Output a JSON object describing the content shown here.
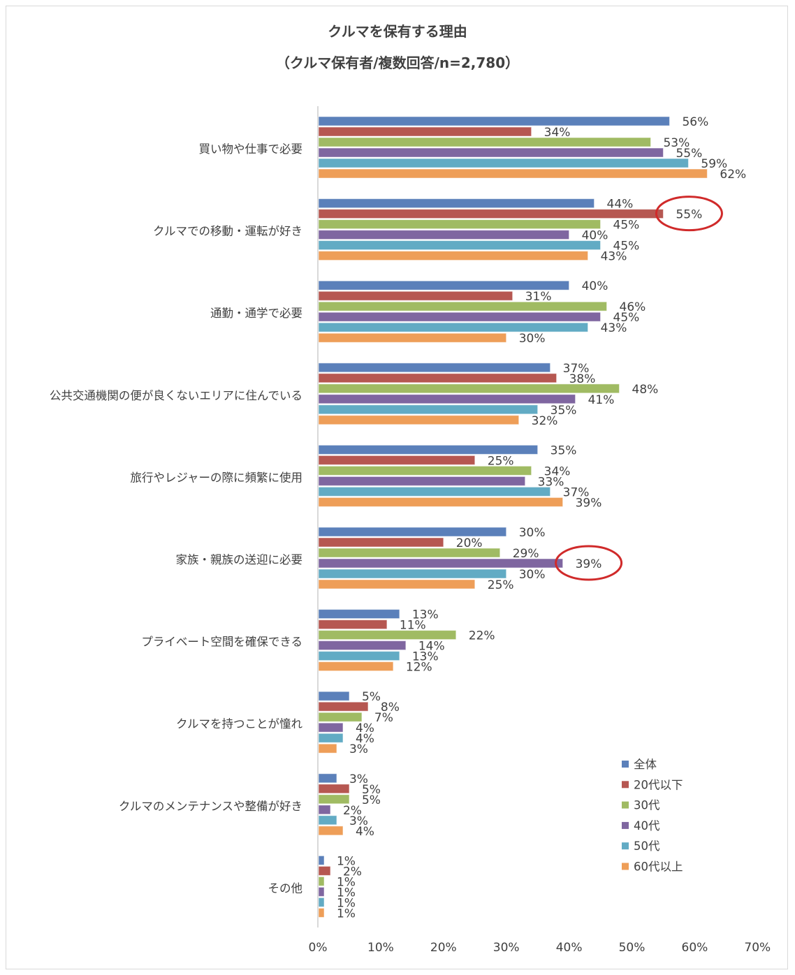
{
  "chart_data": {
    "type": "bar",
    "orientation": "horizontal",
    "title": "クルマを保有する理由",
    "subtitle": "（クルマ保有者/複数回答/n=2,780）",
    "xlabel": "",
    "ylabel": "",
    "xlim": [
      0,
      70
    ],
    "x_ticks": [
      "0%",
      "10%",
      "20%",
      "30%",
      "40%",
      "50%",
      "60%",
      "70%"
    ],
    "grid": false,
    "legend_position": "right-bottom",
    "categories": [
      "買い物や仕事で必要",
      "クルマでの移動・運転が好き",
      "通勤・通学で必要",
      "公共交通機関の便が良くないエリアに住んでいる",
      "旅行やレジャーの際に頻繁に使用",
      "家族・親族の送迎に必要",
      "プライベート空間を確保できる",
      "クルマを持つことが憧れ",
      "クルマのメンテナンスや整備が好き",
      "その他"
    ],
    "series": [
      {
        "name": "全体",
        "color": "#5B80BA",
        "values": [
          56,
          44,
          40,
          37,
          35,
          30,
          13,
          5,
          3,
          1
        ]
      },
      {
        "name": "20代以下",
        "color": "#B65751",
        "values": [
          34,
          55,
          31,
          38,
          25,
          20,
          11,
          8,
          5,
          2
        ]
      },
      {
        "name": "30代",
        "color": "#A0BB63",
        "values": [
          53,
          45,
          46,
          48,
          34,
          29,
          22,
          7,
          5,
          1
        ]
      },
      {
        "name": "40代",
        "color": "#7F66A0",
        "values": [
          55,
          40,
          45,
          41,
          33,
          39,
          14,
          4,
          2,
          1
        ]
      },
      {
        "name": "50代",
        "color": "#62ABC4",
        "values": [
          59,
          45,
          43,
          35,
          37,
          30,
          13,
          4,
          3,
          1
        ]
      },
      {
        "name": "60代以上",
        "color": "#EE9E58",
        "values": [
          62,
          43,
          30,
          32,
          39,
          25,
          12,
          3,
          4,
          1
        ]
      }
    ],
    "value_suffix": "%",
    "highlights": [
      {
        "category_index": 1,
        "series_index": 1,
        "color": "#D02A2A"
      },
      {
        "category_index": 5,
        "series_index": 3,
        "color": "#D02A2A"
      }
    ]
  }
}
